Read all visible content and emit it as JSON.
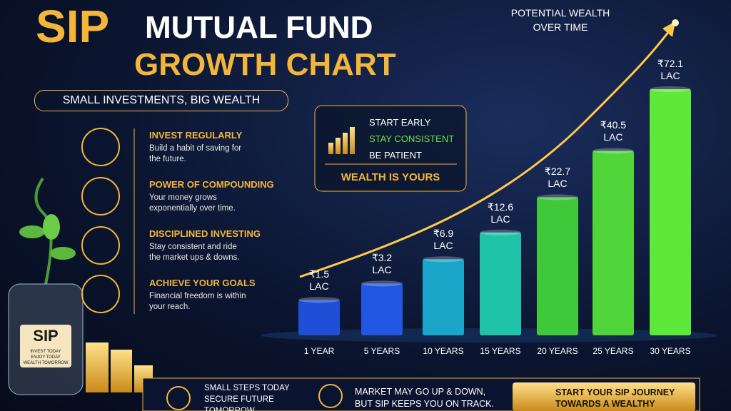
{
  "chart_data": {
    "type": "bar",
    "scale": "sqrt",
    "annotation": "POTENTIAL WEALTH OVER TIME",
    "categories": [
      "1 YEAR",
      "5 YEARS",
      "10 YEARS",
      "15 YEARS",
      "20 YEARS",
      "25 YEARS",
      "30 YEARS"
    ],
    "values": [
      1.5,
      3.2,
      6.9,
      12.6,
      22.7,
      40.5,
      72.1
    ],
    "value_labels": [
      "₹1.5 LAC",
      "₹3.2 LAC",
      "₹6.9 LAC",
      "₹12.6 LAC",
      "₹22.7 LAC",
      "₹40.5 LAC",
      "₹72.1 LAC"
    ],
    "colors": [
      "#1f4fd6",
      "#2257e2",
      "#19a6c9",
      "#1fc4a8",
      "#3ec83a",
      "#4fd43a",
      "#5ee83a"
    ]
  },
  "header": {
    "title_a": "SIP",
    "title_b": "MUTUAL FUND",
    "title_c": "GROWTH CHART",
    "subtitle": "SMALL INVESTMENTS, BIG WEALTH"
  },
  "tips": [
    {
      "title": "INVEST REGULARLY",
      "text": "Build a habit of saving for the future."
    },
    {
      "title": "POWER OF COMPOUNDING",
      "text": "Your money grows exponentially over time."
    },
    {
      "title": "DISCIPLINED INVESTING",
      "text": "Stay consistent and ride the market ups & downs."
    },
    {
      "title": "ACHIEVE YOUR GOALS",
      "text": "Financial freedom is within your reach."
    }
  ],
  "callout": {
    "lines": [
      "START EARLY",
      "STAY CONSISTENT",
      "BE PATIENT"
    ],
    "footer": "WEALTH IS YOURS"
  },
  "jar": {
    "label": "SIP",
    "line1": "INVEST TODAY",
    "line2": "ENJOY TODAY",
    "line3": "WEALTH TOMORROW"
  },
  "footer": {
    "left": "SMALL STEPS TODAY SECURE FUTURE TOMORROW",
    "middle": "MARKET MAY GO UP & DOWN, BUT SIP KEEPS YOU ON TRACK.",
    "right": "START YOUR SIP JOURNEY TOWARDS A WEALTHY FUTURE!"
  }
}
